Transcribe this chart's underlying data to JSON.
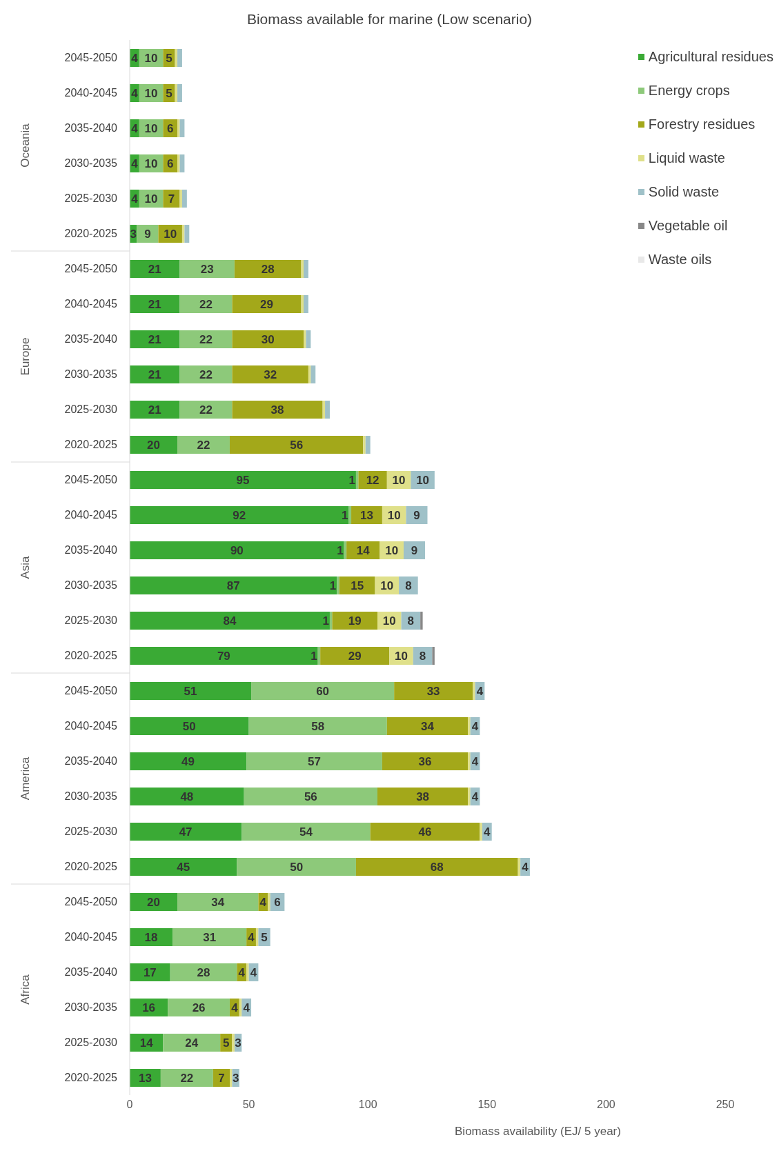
{
  "chart_data": {
    "type": "bar",
    "orientation": "horizontal",
    "stacked": true,
    "title": "Biomass available for marine (Low scenario)",
    "xlabel": "Biomass availability (EJ/ 5 year)",
    "categories": [
      "2045-2050",
      "2040-2045",
      "2035-2040",
      "2030-2035",
      "2025-2030",
      "2020-2025",
      "2045-2050",
      "2040-2045",
      "2035-2040",
      "2030-2035",
      "2025-2030",
      "2020-2025",
      "2045-2050",
      "2040-2045",
      "2035-2040",
      "2030-2035",
      "2025-2030",
      "2020-2025",
      "2045-2050",
      "2040-2045",
      "2035-2040",
      "2030-2035",
      "2025-2030",
      "2020-2025",
      "2045-2050",
      "2040-2045",
      "2035-2040",
      "2030-2035",
      "2025-2030",
      "2020-2025"
    ],
    "annotations": [
      "Oceania",
      "Europe",
      "Asia",
      "America",
      "Africa"
    ],
    "series": [
      {
        "name": "Agricultural residues",
        "color": "#3aaa35",
        "values": [
          4,
          4,
          4,
          4,
          4,
          3,
          21,
          21,
          21,
          21,
          21,
          20,
          95,
          92,
          90,
          87,
          84,
          79,
          51,
          50,
          49,
          48,
          47,
          45,
          20,
          18,
          17,
          16,
          14,
          13
        ],
        "value_labels": [
          "4",
          "4",
          "4",
          "4",
          "4",
          "3",
          "21",
          "21",
          "21",
          "21",
          "21",
          "20",
          "95",
          "92",
          "90",
          "87",
          "84",
          "79",
          "51",
          "50",
          "49",
          "48",
          "47",
          "45",
          "20",
          "18",
          "17",
          "16",
          "14",
          "13"
        ]
      },
      {
        "name": "Energy crops",
        "color": "#8dc97a",
        "values": [
          10,
          10,
          10,
          10,
          10,
          9,
          23,
          22,
          22,
          22,
          22,
          22,
          1,
          1,
          1,
          1,
          1,
          1,
          60,
          58,
          57,
          56,
          54,
          50,
          34,
          31,
          28,
          26,
          24,
          22
        ],
        "value_labels": [
          "10",
          "10",
          "10",
          "10",
          "10",
          "9",
          "23",
          "22",
          "22",
          "22",
          "22",
          "22",
          "1",
          "1",
          "1",
          "1",
          "1",
          "1",
          "60",
          "58",
          "57",
          "56",
          "54",
          "50",
          "34",
          "31",
          "28",
          "26",
          "24",
          "22"
        ]
      },
      {
        "name": "Forestry residues",
        "color": "#a3a81a",
        "values": [
          5,
          5,
          6,
          6,
          7,
          10,
          28,
          29,
          30,
          32,
          38,
          56,
          12,
          13,
          14,
          15,
          19,
          29,
          33,
          34,
          36,
          38,
          46,
          68,
          4,
          4,
          4,
          4,
          5,
          7
        ],
        "value_labels": [
          "5",
          "5",
          "6",
          "6",
          "7",
          "10",
          "28",
          "29",
          "30",
          "32",
          "38",
          "56",
          "12",
          "13",
          "14",
          "15",
          "19",
          "29",
          "33",
          "34",
          "36",
          "38",
          "46",
          "68",
          "4",
          "4",
          "4",
          "4",
          "5",
          "7"
        ]
      },
      {
        "name": "Liquid waste",
        "color": "#dfe08a",
        "values": [
          1,
          1,
          1,
          1,
          1,
          1,
          1,
          1,
          1,
          1,
          1,
          1,
          10,
          10,
          10,
          10,
          10,
          10,
          1,
          1,
          1,
          1,
          1,
          1,
          1,
          1,
          1,
          1,
          1,
          1
        ],
        "value_labels": [
          null,
          null,
          null,
          null,
          null,
          null,
          null,
          null,
          null,
          null,
          null,
          null,
          "10",
          "10",
          "10",
          "10",
          "10",
          "10",
          null,
          null,
          null,
          null,
          null,
          null,
          null,
          null,
          null,
          null,
          null,
          null
        ]
      },
      {
        "name": "Solid waste",
        "color": "#9fc1c8",
        "values": [
          2,
          2,
          2,
          2,
          2,
          2,
          2,
          2,
          2,
          2,
          2,
          2,
          10,
          9,
          9,
          8,
          8,
          8,
          4,
          4,
          4,
          4,
          4,
          4,
          6,
          5,
          4,
          4,
          3,
          3
        ],
        "value_labels": [
          null,
          null,
          null,
          null,
          null,
          null,
          null,
          null,
          null,
          null,
          null,
          null,
          "10",
          "9",
          "9",
          "8",
          "8",
          "8",
          "4",
          "4",
          "4",
          "4",
          "4",
          "4",
          "6",
          "5",
          "4",
          "4",
          "3",
          "3"
        ]
      },
      {
        "name": "Vegetable oil",
        "color": "#888888",
        "values": [
          0,
          0,
          0,
          0,
          0,
          0,
          0,
          0,
          0,
          0,
          0,
          0,
          0,
          0,
          0,
          0,
          1,
          1,
          0,
          0,
          0,
          0,
          0,
          0,
          0,
          0,
          0,
          0,
          0,
          0
        ]
      },
      {
        "name": "Waste oils",
        "color": "#e8e8e8",
        "values": [
          0,
          0,
          0,
          0,
          0,
          0,
          0,
          0,
          0,
          0,
          0,
          0,
          0,
          0,
          0,
          0,
          0,
          0,
          0,
          0,
          0,
          0,
          0,
          0,
          0,
          0,
          0,
          0,
          0,
          0
        ]
      }
    ],
    "xlim": [
      0,
      250
    ],
    "xticks": [
      0,
      50,
      100,
      150,
      200,
      250
    ],
    "grid": false,
    "legend": "top right"
  }
}
